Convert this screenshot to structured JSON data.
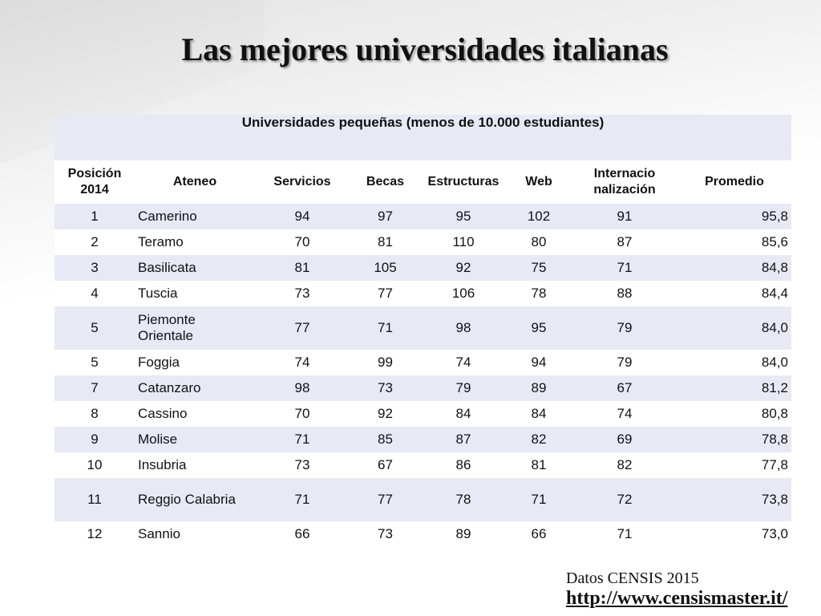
{
  "title": "Las mejores universidades italianas",
  "table": {
    "caption": "Universidades pequeñas (menos de 10.000 estudiantes)",
    "headers": [
      "Posición 2014",
      "Ateneo",
      "Servicios",
      "Becas",
      "Estructuras",
      "Web",
      "Internacio nalización",
      "Promedio"
    ],
    "rows": [
      [
        "1",
        "Camerino",
        "94",
        "97",
        "95",
        "102",
        "91",
        "95,8"
      ],
      [
        "2",
        "Teramo",
        "70",
        "81",
        "110",
        "80",
        "87",
        "85,6"
      ],
      [
        "3",
        "Basilicata",
        "81",
        "105",
        "92",
        "75",
        "71",
        "84,8"
      ],
      [
        "4",
        "Tuscia",
        "73",
        "77",
        "106",
        "78",
        "88",
        "84,4"
      ],
      [
        "5",
        "Piemonte Orientale",
        "77",
        "71",
        "98",
        "95",
        "79",
        "84,0"
      ],
      [
        "5",
        "Foggia",
        "74",
        "99",
        "74",
        "94",
        "79",
        "84,0"
      ],
      [
        "7",
        "Catanzaro",
        "98",
        "73",
        "79",
        "89",
        "67",
        "81,2"
      ],
      [
        "8",
        "Cassino",
        "70",
        "92",
        "84",
        "84",
        "74",
        "80,8"
      ],
      [
        "9",
        "Molise",
        "71",
        "85",
        "87",
        "82",
        "69",
        "78,8"
      ],
      [
        "10",
        "Insubria",
        "73",
        "67",
        "86",
        "81",
        "82",
        "77,8"
      ],
      [
        "11",
        "Reggio Calabria",
        "71",
        "77",
        "78",
        "71",
        "72",
        "73,8"
      ],
      [
        "12",
        "Sannio",
        "66",
        "73",
        "89",
        "66",
        "71",
        "73,0"
      ]
    ]
  },
  "source": {
    "credit": "Datos CENSIS 2015",
    "link": "http://www.censismaster.it/"
  },
  "colors": {
    "row_blue": "#e7eaf5",
    "row_white": "#ffffff"
  }
}
